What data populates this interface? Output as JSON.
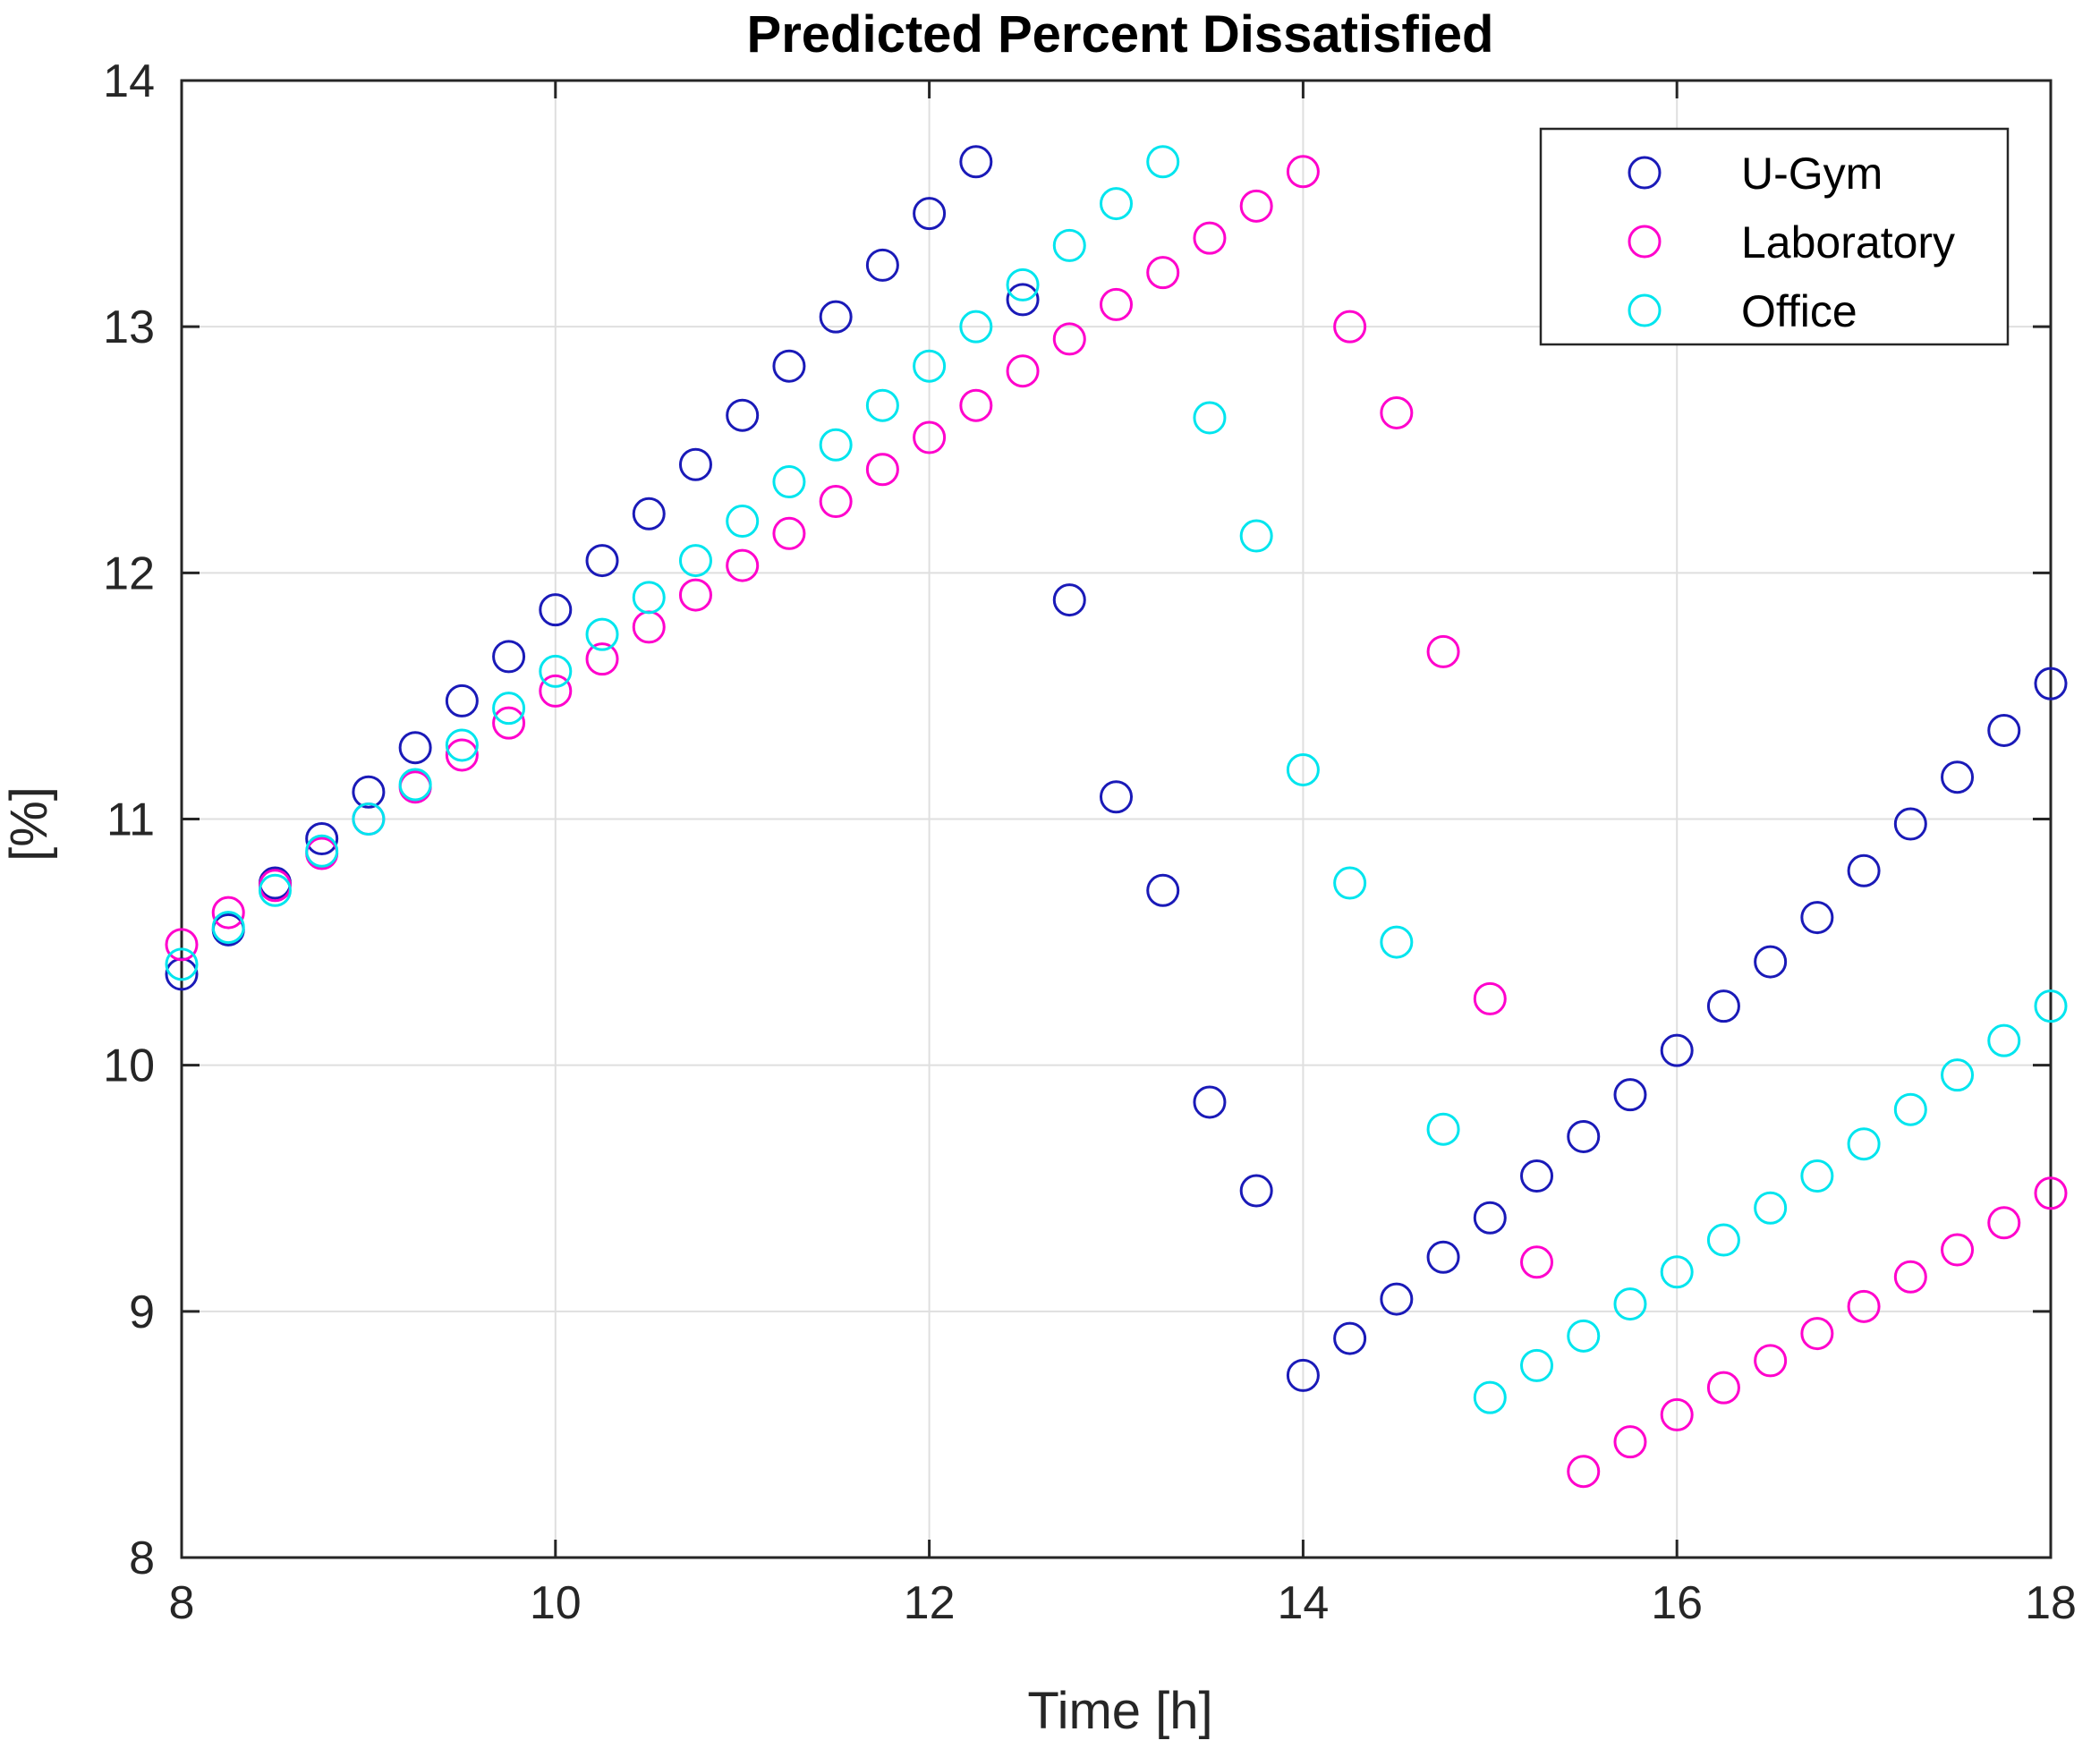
{
  "chart_data": {
    "type": "scatter",
    "title": "Predicted Percent Dissatisfied",
    "xlabel": "Time [h]",
    "ylabel": "[%]",
    "xlim": [
      8,
      18
    ],
    "ylim": [
      8,
      14
    ],
    "xticks": [
      "8",
      "10",
      "12",
      "14",
      "16",
      "18"
    ],
    "yticks": [
      "8",
      "9",
      "10",
      "11",
      "12",
      "13",
      "14"
    ],
    "grid": true,
    "legend_position": "top-right",
    "marker": "open-circle",
    "series": [
      {
        "name": "U-Gym",
        "color": "#1a1ab8",
        "x": [
          8,
          8.25,
          8.5,
          8.75,
          9,
          9.25,
          9.5,
          9.75,
          10,
          10.25,
          10.5,
          10.75,
          11,
          11.25,
          11.5,
          11.75,
          12,
          12.25,
          12.5,
          12.75,
          13,
          13.25,
          13.5,
          13.75,
          14,
          14.25,
          14.5,
          14.75,
          15,
          15.25,
          15.5,
          15.75,
          16,
          16.25,
          16.5,
          16.75,
          17,
          17.25,
          17.5,
          17.75,
          18
        ],
        "y": [
          10.37,
          10.55,
          10.74,
          10.92,
          11.11,
          11.29,
          11.48,
          11.66,
          11.85,
          12.05,
          12.24,
          12.44,
          12.64,
          12.84,
          13.04,
          13.25,
          13.46,
          13.67,
          13.11,
          11.89,
          11.09,
          10.71,
          9.85,
          9.49,
          8.74,
          8.89,
          9.05,
          9.22,
          9.38,
          9.55,
          9.71,
          9.88,
          10.06,
          10.24,
          10.42,
          10.6,
          10.79,
          10.98,
          11.17,
          11.36,
          11.55
        ]
      },
      {
        "name": "Laboratory",
        "color": "#ff00cc",
        "x": [
          8,
          8.25,
          8.5,
          8.75,
          9,
          9.25,
          9.5,
          9.75,
          10,
          10.25,
          10.5,
          10.75,
          11,
          11.25,
          11.5,
          11.75,
          12,
          12.25,
          12.5,
          12.75,
          13,
          13.25,
          13.5,
          13.75,
          14,
          14.25,
          14.5,
          14.75,
          15,
          15.25,
          15.5,
          15.75,
          16,
          16.25,
          16.5,
          16.75,
          17,
          17.25,
          17.5,
          17.75,
          18
        ],
        "y": [
          10.49,
          10.62,
          10.73,
          10.86,
          11.0,
          11.13,
          11.26,
          11.39,
          11.52,
          11.65,
          11.78,
          11.91,
          12.03,
          12.16,
          12.29,
          12.42,
          12.55,
          12.68,
          12.82,
          12.95,
          13.09,
          13.22,
          13.36,
          13.49,
          13.63,
          13.0,
          12.65,
          11.68,
          10.27,
          9.2,
          8.35,
          8.47,
          8.58,
          8.69,
          8.8,
          8.91,
          9.02,
          9.14,
          9.25,
          9.36,
          9.48
        ]
      },
      {
        "name": "Office",
        "color": "#00e5ee",
        "x": [
          8,
          8.25,
          8.5,
          8.75,
          9,
          9.25,
          9.5,
          9.75,
          10,
          10.25,
          10.5,
          10.75,
          11,
          11.25,
          11.5,
          11.75,
          12,
          12.25,
          12.5,
          12.75,
          13,
          13.25,
          13.5,
          13.75,
          14,
          14.25,
          14.5,
          14.75,
          15,
          15.25,
          15.5,
          15.75,
          16,
          16.25,
          16.5,
          16.75,
          17,
          17.25,
          17.5,
          17.75,
          18
        ],
        "y": [
          10.41,
          10.56,
          10.71,
          10.87,
          11.0,
          11.14,
          11.3,
          11.45,
          11.6,
          11.75,
          11.9,
          12.05,
          12.21,
          12.37,
          12.52,
          12.68,
          12.84,
          13.0,
          13.17,
          13.33,
          13.5,
          13.67,
          12.63,
          12.15,
          11.2,
          10.74,
          10.5,
          9.74,
          8.65,
          8.78,
          8.9,
          9.03,
          9.16,
          9.29,
          9.42,
          9.55,
          9.68,
          9.82,
          9.96,
          10.1,
          10.24
        ]
      }
    ]
  }
}
